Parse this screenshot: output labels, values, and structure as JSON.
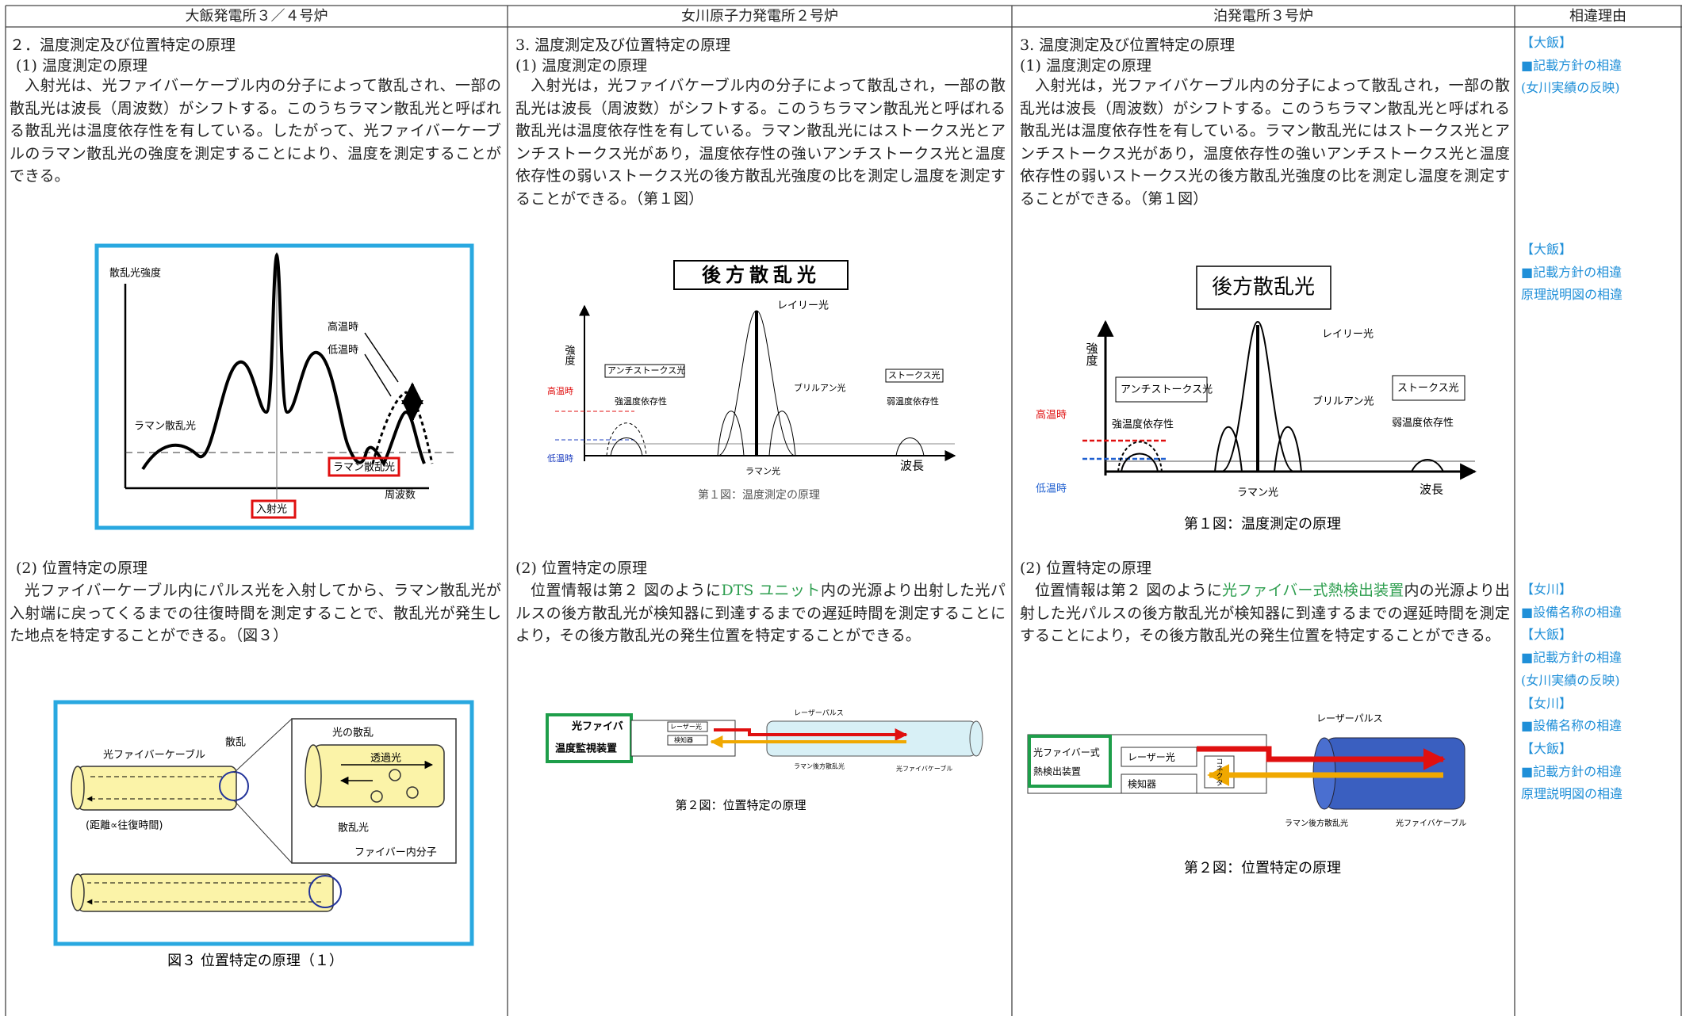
{
  "table": {
    "columns": [
      {
        "header": "大飯発電所３／４号炉",
        "heading": "２．温度測定及び位置特定の原理",
        "sections": [
          {
            "subheading": "(1) 温度測定の原理",
            "body": [
              "入射光は、光ファイバーケーブル内の分子によって散乱され、一部の散乱光は波長（周波数）がシフトする。このうちラマン散乱光と呼ばれる散乱光は温度依存性を有している。したがって、光ファイバーケーブルのラマン散乱光の強度を測定することにより、温度を測定することができる。"
            ],
            "figure": {
              "labels": [
                "散乱光強度",
                "高温時",
                "低温時",
                "ラマン散乱光",
                "ラマン散乱光",
                "入射光",
                "周波数"
              ]
            }
          },
          {
            "subheading": "(2) 位置特定の原理",
            "body": [
              "光ファイバーケーブル内にパルス光を入射してから、ラマン散乱光が入射端に戻ってくるまでの往復時間を測定することで、散乱光が発生した地点を特定することができる。（図３）"
            ],
            "figure": {
              "labels": [
                "光ファイバーケーブル",
                "散乱",
                "光の散乱",
                "透過光",
                "(距離∝往復時間)",
                "散乱光",
                "ファイバー内分子"
              ],
              "caption": "図３ 位置特定の原理（１）"
            }
          }
        ]
      },
      {
        "header": "女川原子力発電所２号炉",
        "heading": "3. 温度測定及び位置特定の原理",
        "sections": [
          {
            "subheading": "(1) 温度測定の原理",
            "body": [
              "入射光は，光ファイバケーブル内の分子によって散乱され，一部の散乱光は波長（周波数）がシフトする。このうちラマン散乱光と呼ばれる散乱光は温度依存性を有している。ラマン散乱光にはストークス光とアンチストークス光があり，温度依存性の強いアンチストークス光と温度依存性の弱いストークス光の後方散乱光強度の比を測定し温度を測定することができる。（第１図）"
            ],
            "figure": {
              "title": "後方散乱光",
              "labels": [
                "レイリー光",
                "強度",
                "アンチストークス光",
                "ストークス光",
                "高温時",
                "強温度依存性",
                "ブリルアン光",
                "弱温度依存性",
                "低温時",
                "ラマン光",
                "波長"
              ],
              "caption": "第１図：温度測定の原理"
            }
          },
          {
            "subheading": "(2) 位置特定の原理",
            "body": [
              "位置情報は第２ 図のように",
              {
                "text": "DTS ユニット",
                "color": "#2e9e4f"
              },
              "内の光源より出射した光パルスの後方散乱光が検知器に到達するまでの遅延時間を測定することにより，その後方散乱光の発生位置を特定することができる。"
            ],
            "figure": {
              "labels": [
                "光ファイバ",
                "温度監視装置",
                "レーザー光",
                "検知器",
                "レーザーパルス",
                "ラマン後方散乱光",
                "光ファイバケーブル"
              ],
              "caption": "第２図：位置特定の原理"
            }
          }
        ]
      },
      {
        "header": "泊発電所３号炉",
        "heading": "3. 温度測定及び位置特定の原理",
        "sections": [
          {
            "subheading": "(1) 温度測定の原理",
            "body": [
              "入射光は，光ファイバケーブル内の分子によって散乱され，一部の散乱光は波長（周波数）がシフトする。このうちラマン散乱光と呼ばれる散乱光は温度依存性を有している。ラマン散乱光にはストークス光とアンチストークス光があり，温度依存性の強いアンチストークス光と温度依存性の弱いストークス光の後方散乱光強度の比を測定し温度を測定することができる。（第１図）"
            ],
            "figure": {
              "title": "後方散乱光",
              "labels": [
                "レイリー光",
                "強度",
                "アンチストークス光",
                "ストークス光",
                "高温時",
                "強温度依存性",
                "ブリルアン光",
                "弱温度依存性",
                "低温時",
                "ラマン光",
                "波長"
              ],
              "caption": "第１図：温度測定の原理"
            }
          },
          {
            "subheading": "(2) 位置特定の原理",
            "body": [
              "位置情報は第２ 図のように",
              {
                "text": "光ファイバー式熱検出装置",
                "color": "#2e9e4f"
              },
              "内の光源より出射した光パルスの後方散乱光が検知器に到達するまでの遅延時間を測定することにより，その後方散乱光の発生位置を特定することができる。"
            ],
            "figure": {
              "labels": [
                "光ファイバー式",
                "熱検出装置",
                "レーザー光",
                "検知器",
                "コネクタ",
                "レーザーパルス",
                "ラマン後方散乱光",
                "光ファイバケーブル"
              ],
              "caption": "第２図：位置特定の原理"
            }
          }
        ]
      },
      {
        "header": "相違理由",
        "note_color": "#1f8fd8",
        "notes": [
          [
            "【大飯】",
            "■記載方針の相違",
            "(女川実績の反映)"
          ],
          [
            "【大飯】",
            "■記載方針の相違",
            "原理説明図の相違"
          ],
          [
            "【女川】",
            "■設備名称の相違",
            "【大飯】",
            "■記載方針の相違",
            "(女川実績の反映)",
            "【女川】",
            "■設備名称の相違",
            "【大飯】",
            "■記載方針の相違",
            "原理説明図の相違"
          ]
        ]
      }
    ]
  }
}
